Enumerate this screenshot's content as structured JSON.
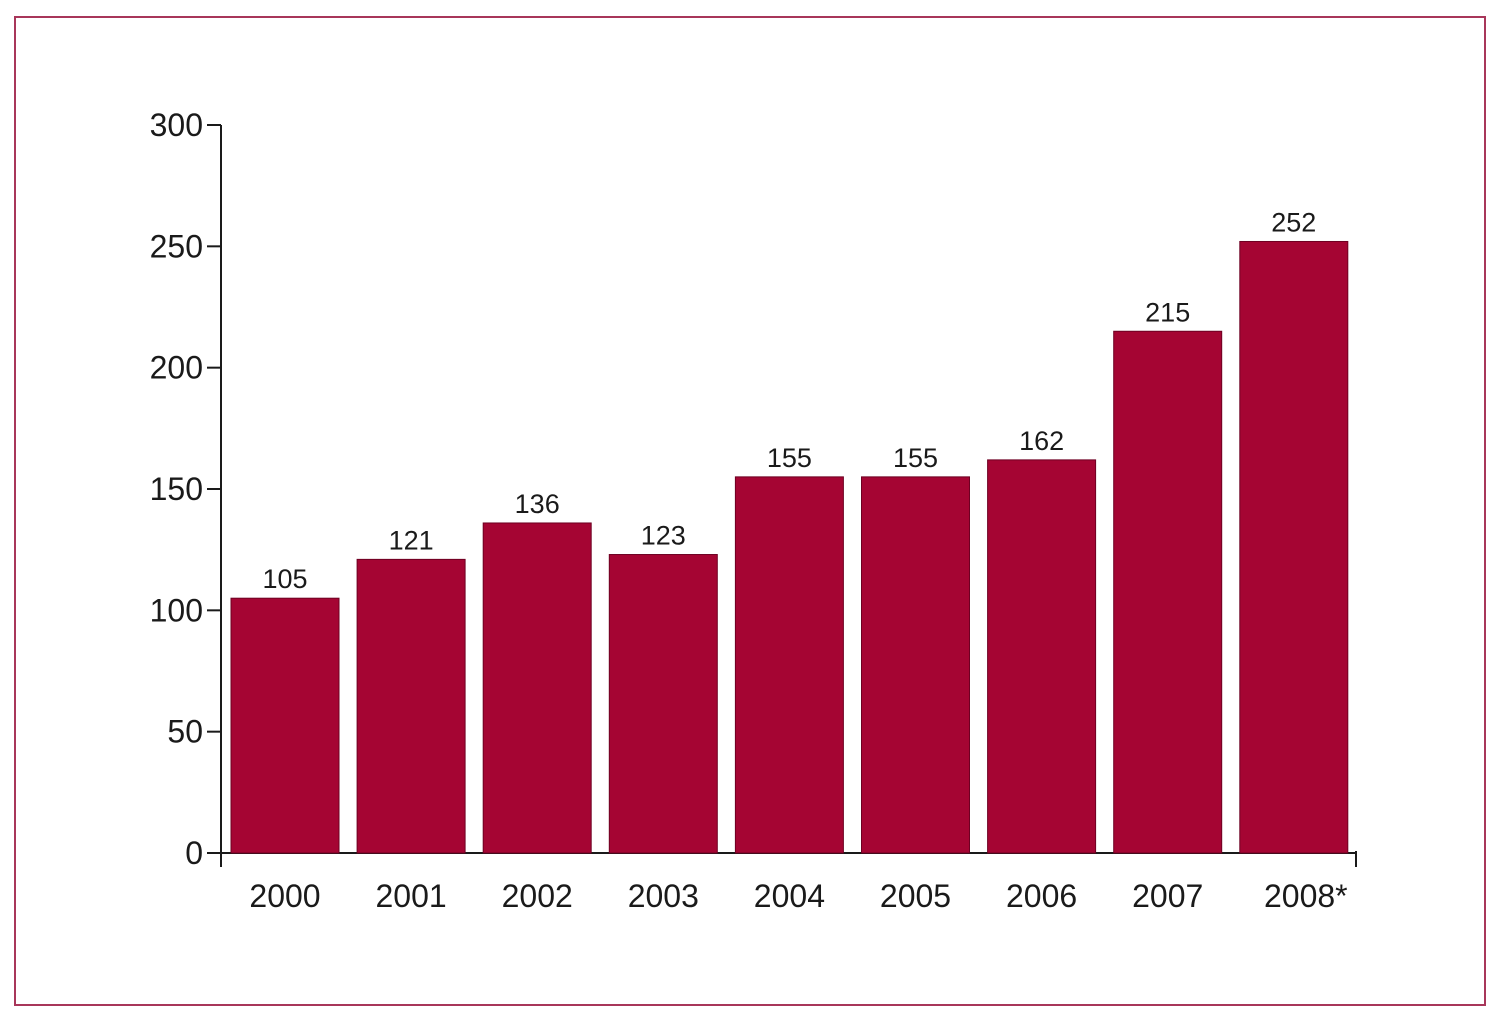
{
  "chart_data": {
    "type": "bar",
    "title": "",
    "xlabel": "",
    "ylabel": "",
    "categories": [
      "2000",
      "2001",
      "2002",
      "2003",
      "2004",
      "2005",
      "2006",
      "2007",
      "2008*"
    ],
    "values": [
      105,
      121,
      136,
      123,
      155,
      155,
      162,
      215,
      252
    ],
    "data_labels": [
      "105",
      "121",
      "136",
      "123",
      "155",
      "155",
      "162",
      "215",
      "252"
    ],
    "ylim": [
      0,
      300
    ],
    "yticks": [
      0,
      50,
      100,
      150,
      200,
      250,
      300
    ],
    "ytick_labels": [
      "0",
      "50",
      "100",
      "150",
      "200",
      "250",
      "300"
    ],
    "grid": false,
    "legend": "none",
    "colors": {
      "bar": "#a50533",
      "frame": "#a8365a",
      "axis": "#1a1a1a"
    }
  }
}
